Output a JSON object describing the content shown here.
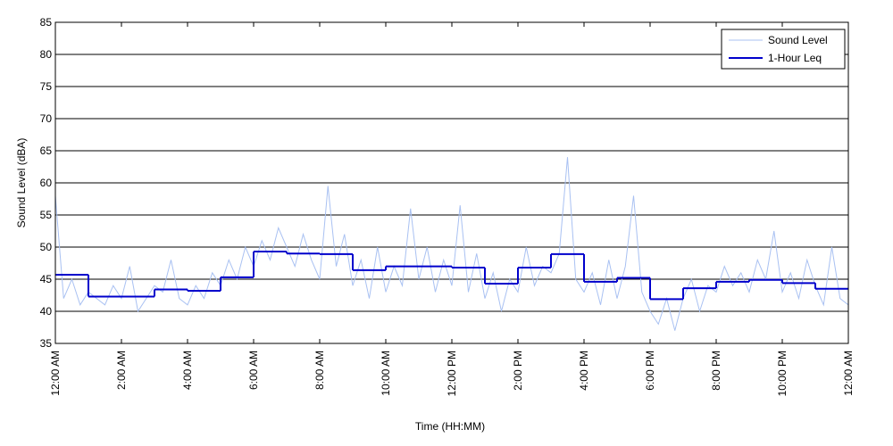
{
  "chart_data": {
    "type": "line",
    "xlabel": "Time (HH:MM)",
    "ylabel": "Sound Level (dBA)",
    "xlim": [
      0,
      24
    ],
    "xticks": [
      {
        "value": 0,
        "label": "12:00 AM"
      },
      {
        "value": 2,
        "label": "2:00 AM"
      },
      {
        "value": 4,
        "label": "4:00 AM"
      },
      {
        "value": 6,
        "label": "6:00 AM"
      },
      {
        "value": 8,
        "label": "8:00 AM"
      },
      {
        "value": 10,
        "label": "10:00 AM"
      },
      {
        "value": 12,
        "label": "12:00 PM"
      },
      {
        "value": 14,
        "label": "2:00 PM"
      },
      {
        "value": 16,
        "label": "4:00 PM"
      },
      {
        "value": 18,
        "label": "6:00 PM"
      },
      {
        "value": 20,
        "label": "8:00 PM"
      },
      {
        "value": 22,
        "label": "10:00 PM"
      },
      {
        "value": 24,
        "label": "12:00 AM"
      }
    ],
    "ylim": [
      35,
      85
    ],
    "yticks": [
      35,
      40,
      45,
      50,
      55,
      60,
      65,
      70,
      75,
      80,
      85
    ],
    "grid": true,
    "legend": "upper right",
    "series": [
      {
        "name": "Sound Level",
        "color": "#a9c1f2",
        "x": [
          0,
          0.25,
          0.5,
          0.75,
          1,
          1.25,
          1.5,
          1.75,
          2,
          2.25,
          2.5,
          2.75,
          3,
          3.25,
          3.5,
          3.75,
          4,
          4.25,
          4.5,
          4.75,
          5,
          5.25,
          5.5,
          5.75,
          6,
          6.25,
          6.5,
          6.75,
          7,
          7.25,
          7.5,
          7.75,
          8,
          8.25,
          8.5,
          8.75,
          9,
          9.25,
          9.5,
          9.75,
          10,
          10.25,
          10.5,
          10.75,
          11,
          11.25,
          11.5,
          11.75,
          12,
          12.25,
          12.5,
          12.75,
          13,
          13.25,
          13.5,
          13.75,
          14,
          14.25,
          14.5,
          14.75,
          15,
          15.25,
          15.5,
          15.75,
          16,
          16.25,
          16.5,
          16.75,
          17,
          17.25,
          17.5,
          17.75,
          18,
          18.25,
          18.5,
          18.75,
          19,
          19.25,
          19.5,
          19.75,
          20,
          20.25,
          20.5,
          20.75,
          21,
          21.25,
          21.5,
          21.75,
          22,
          22.25,
          22.5,
          22.75,
          23,
          23.25,
          23.5,
          23.75,
          24
        ],
        "values": [
          58,
          42,
          45,
          41,
          43,
          42,
          41,
          44,
          42,
          47,
          40,
          42,
          44,
          43,
          48,
          42,
          41,
          44,
          42,
          46,
          44,
          48,
          45,
          50,
          47,
          51,
          48,
          53,
          50,
          47,
          52,
          48,
          45,
          59.5,
          47,
          52,
          44,
          48,
          42,
          50,
          43,
          47,
          44,
          56,
          45,
          50,
          43,
          48,
          44,
          56.5,
          43,
          49,
          42,
          46,
          40,
          45,
          43,
          50,
          44,
          47,
          46,
          49,
          64,
          45,
          43,
          46,
          41,
          48,
          42,
          47,
          58,
          43,
          40,
          38,
          42,
          37,
          42,
          45,
          40,
          44,
          43,
          47,
          44,
          46,
          43,
          48,
          45,
          52.5,
          43,
          46,
          42,
          48,
          44,
          41,
          50,
          42,
          41
        ]
      },
      {
        "name": "1-Hour Leq",
        "color": "#0000cc",
        "step": "post",
        "x": [
          0,
          1,
          2,
          3,
          4,
          5,
          6,
          7,
          8,
          9,
          10,
          11,
          12,
          13,
          14,
          15,
          16,
          17,
          18,
          19,
          20,
          21,
          22,
          23
        ],
        "values": [
          45.7,
          42.3,
          42.3,
          43.4,
          43.2,
          45.3,
          49.3,
          49.0,
          48.9,
          46.4,
          47.0,
          47.0,
          46.8,
          44.3,
          46.8,
          48.9,
          44.6,
          45.2,
          41.9,
          43.6,
          44.6,
          44.9,
          44.4,
          43.5
        ]
      }
    ]
  }
}
